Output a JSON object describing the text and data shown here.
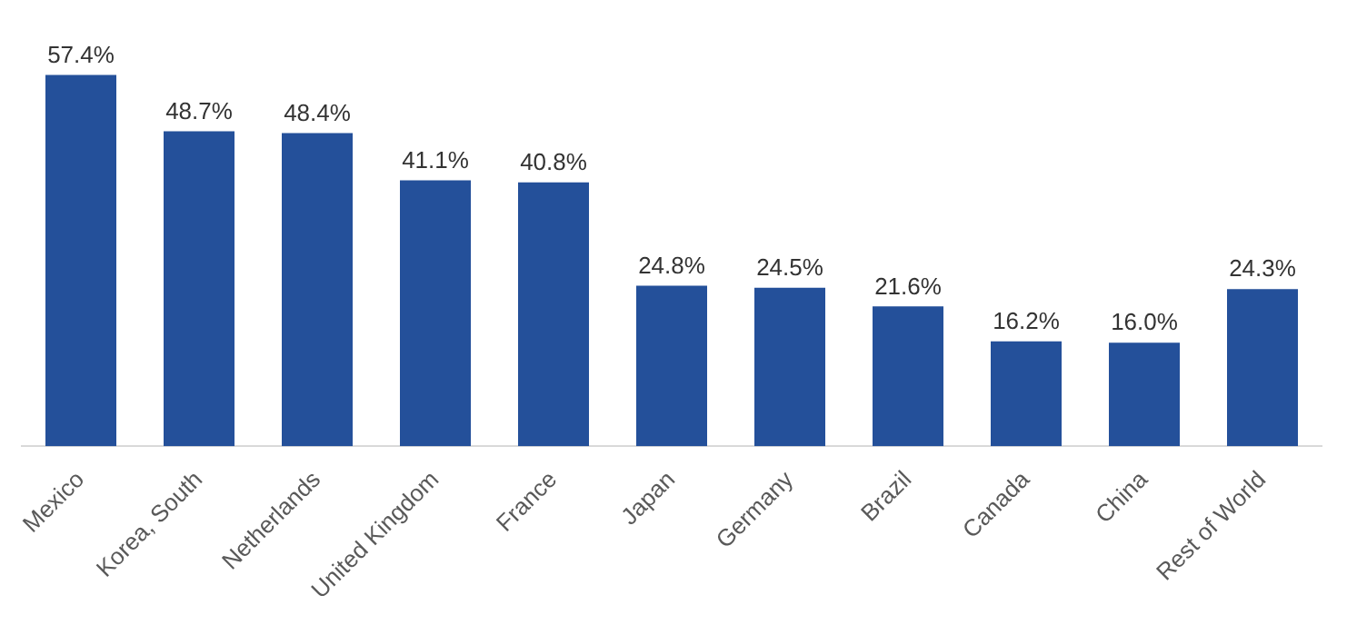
{
  "chart_data": {
    "type": "bar",
    "categories": [
      "Mexico",
      "Korea, South",
      "Netherlands",
      "United Kingdom",
      "France",
      "Japan",
      "Germany",
      "Brazil",
      "Canada",
      "China",
      "Rest of World"
    ],
    "values": [
      57.4,
      48.7,
      48.4,
      41.1,
      40.8,
      24.8,
      24.5,
      21.6,
      16.2,
      16.0,
      24.3
    ],
    "value_labels": [
      "57.4%",
      "48.7%",
      "48.4%",
      "41.1%",
      "40.8%",
      "24.8%",
      "24.5%",
      "21.6%",
      "16.2%",
      "16.0%",
      "24.3%"
    ],
    "color": "#24509a",
    "grid": false,
    "legend": false
  }
}
